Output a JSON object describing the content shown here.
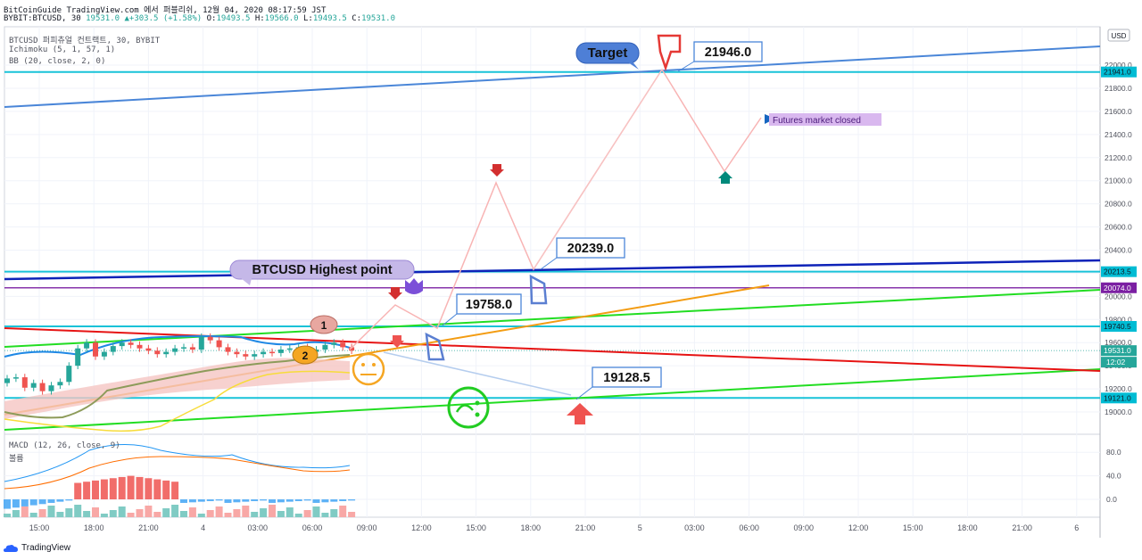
{
  "header": {
    "line1": "BitCoinGuide TradingView.com 에서 퍼블리쉬, 12월 04, 2020 08:17:59 JST",
    "symbol": "BYBIT:BTCUSD, 30",
    "last": "19531.0",
    "change": "+303.5 (+1.58%)",
    "o_label": "O:",
    "o": "19493.5",
    "h_label": "H:",
    "h": "19566.0",
    "l_label": "L:",
    "l": "19493.5",
    "c_label": "C:",
    "c": "19531.0"
  },
  "legend": {
    "main": "BTCUSD 퍼피츄얼 컨트랙트, 30, BYBIT",
    "ichimoku": "Ichimoku (5, 1, 57, 1)",
    "bb": "BB (20, close, 2, 0)",
    "macd": "MACD (12, 26, close, 9)",
    "vol": "볼륨"
  },
  "footer": {
    "brand": "TradingView"
  },
  "colors": {
    "up": "#26a69a",
    "down": "#ef5350",
    "level": "#00bcd4",
    "highlight": "#7b1fa2",
    "arrow": "#f8b4b4"
  },
  "chart_data": {
    "type": "line",
    "y_currency": "USD",
    "price_ylim": [
      18800,
      22200
    ],
    "price_ticks": [
      "19000.0",
      "19200.0",
      "19400.0",
      "19600.0",
      "19800.0",
      "20000.0",
      "20200.0",
      "20400.0",
      "20600.0",
      "20800.0",
      "21000.0",
      "21200.0",
      "21400.0",
      "21600.0",
      "21800.0",
      "22000.0"
    ],
    "x_ticks": [
      "15:00",
      "18:00",
      "21:00",
      "4",
      "03:00",
      "06:00",
      "09:00",
      "12:00",
      "15:00",
      "18:00",
      "21:00",
      "5",
      "03:00",
      "06:00",
      "09:00",
      "12:00",
      "15:00",
      "18:00",
      "21:00",
      "6"
    ],
    "level_labels": [
      {
        "value": 21941.0,
        "label": "21941.0"
      },
      {
        "value": 20213.5,
        "label": "20213.5"
      },
      {
        "value": 20074.0,
        "label": "20074.0"
      },
      {
        "value": 19740.5,
        "label": "19740.5"
      },
      {
        "value": 19531.0,
        "label": "19531.0"
      },
      {
        "value": 19121.0,
        "label": "19121.0"
      }
    ],
    "countdown": "12:02",
    "macd_ticks": [
      "80.0",
      "40.0",
      "0.0"
    ],
    "candles_close": [
      19290,
      19300,
      19210,
      19250,
      19180,
      19230,
      19260,
      19400,
      19550,
      19600,
      19480,
      19520,
      19570,
      19600,
      19580,
      19550,
      19530,
      19500,
      19520,
      19550,
      19560,
      19540,
      19650,
      19620,
      19560,
      19520,
      19500,
      19480,
      19500,
      19520,
      19510,
      19540,
      19550,
      19560,
      19520,
      19540,
      19580,
      19600,
      19560,
      19531
    ],
    "callouts": [
      {
        "text": "Target"
      },
      {
        "text": "21946.0",
        "value": 21946.0
      },
      {
        "text": "20239.0",
        "value": 20239.0
      },
      {
        "text": "19758.0",
        "value": 19758.0
      },
      {
        "text": "19128.5",
        "value": 19128.5
      },
      {
        "text": "BTCUSD Highest point"
      },
      {
        "text": "Futures market closed"
      },
      {
        "text": "1"
      },
      {
        "text": "2"
      }
    ],
    "projection_path": [
      {
        "time": "08:30",
        "price": 19630
      },
      {
        "time": "10:30",
        "price": 19880
      },
      {
        "time": "12:30",
        "price": 19720
      },
      {
        "time": "15:00",
        "price": 21000
      },
      {
        "time": "18:00",
        "price": 20220
      },
      {
        "time": "03:00 (5)",
        "price": 21946
      },
      {
        "time": "04:30 (5)",
        "price": 21070
      },
      {
        "time": "06:00 (5)",
        "price": 21550
      }
    ]
  }
}
